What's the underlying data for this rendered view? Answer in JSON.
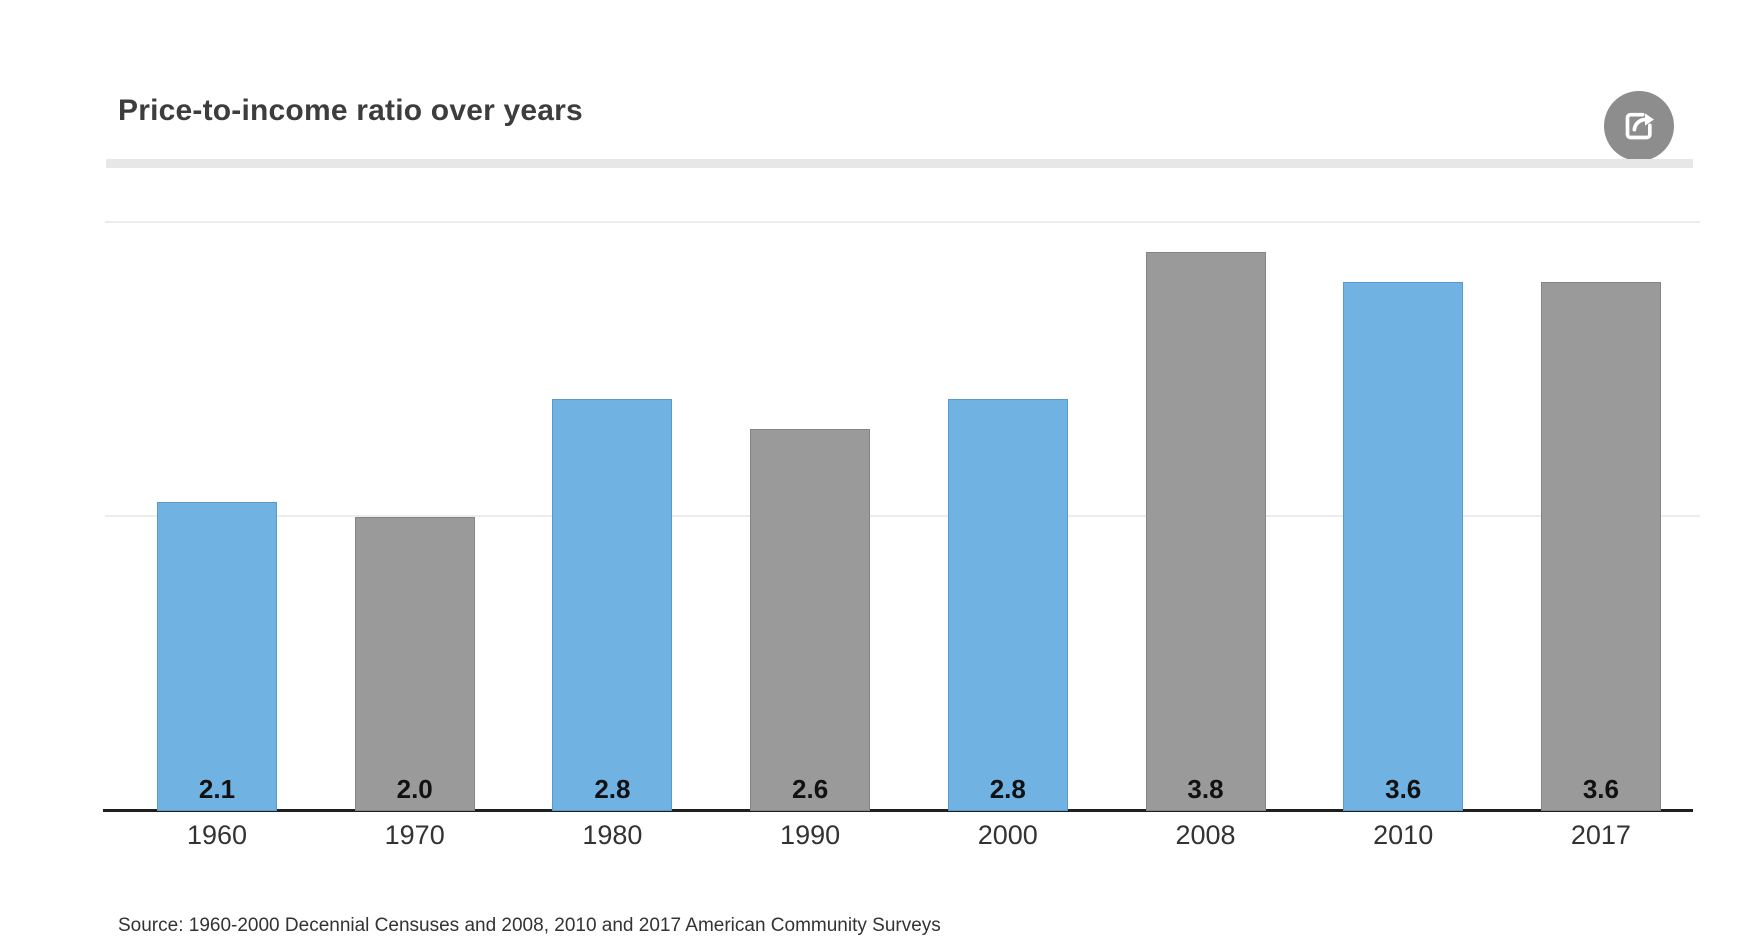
{
  "header": {
    "title": "Price-to-income ratio over years"
  },
  "toolbar": {
    "share_icon": "share-icon"
  },
  "footer": {
    "source": "Source: 1960-2000 Decennial Censuses and 2008, 2010 and 2017 American Community Surveys"
  },
  "colors": {
    "bar_blue": "#70b2e2",
    "bar_gray": "#9a9a9a",
    "axis": "#1f1f1f",
    "gridline": "#ececec",
    "title_text": "#3d3d3d",
    "divider": "#e7e7e7",
    "value_label": "#111111",
    "year_label": "#333333",
    "share_button_bg": "#8d8d8d",
    "share_glyph": "#ffffff"
  },
  "chart_data": {
    "type": "bar",
    "title": "Price-to-income ratio over years",
    "categories": [
      "1960",
      "1970",
      "1980",
      "1990",
      "2000",
      "2008",
      "2010",
      "2017"
    ],
    "values": [
      2.1,
      2.0,
      2.8,
      2.6,
      2.8,
      3.8,
      3.6,
      3.6
    ],
    "value_labels": [
      "2.1",
      "2.0",
      "2.8",
      "2.6",
      "2.8",
      "3.8",
      "3.6",
      "3.6"
    ],
    "bar_colors": [
      "blue",
      "gray",
      "blue",
      "gray",
      "blue",
      "gray",
      "blue",
      "gray"
    ],
    "xlabel": "",
    "ylabel": "",
    "ylim": [
      0,
      4.29
    ],
    "gridlines_at": [
      2,
      4
    ],
    "grid": true,
    "legend": false,
    "value_label_position": "inside-bottom"
  }
}
